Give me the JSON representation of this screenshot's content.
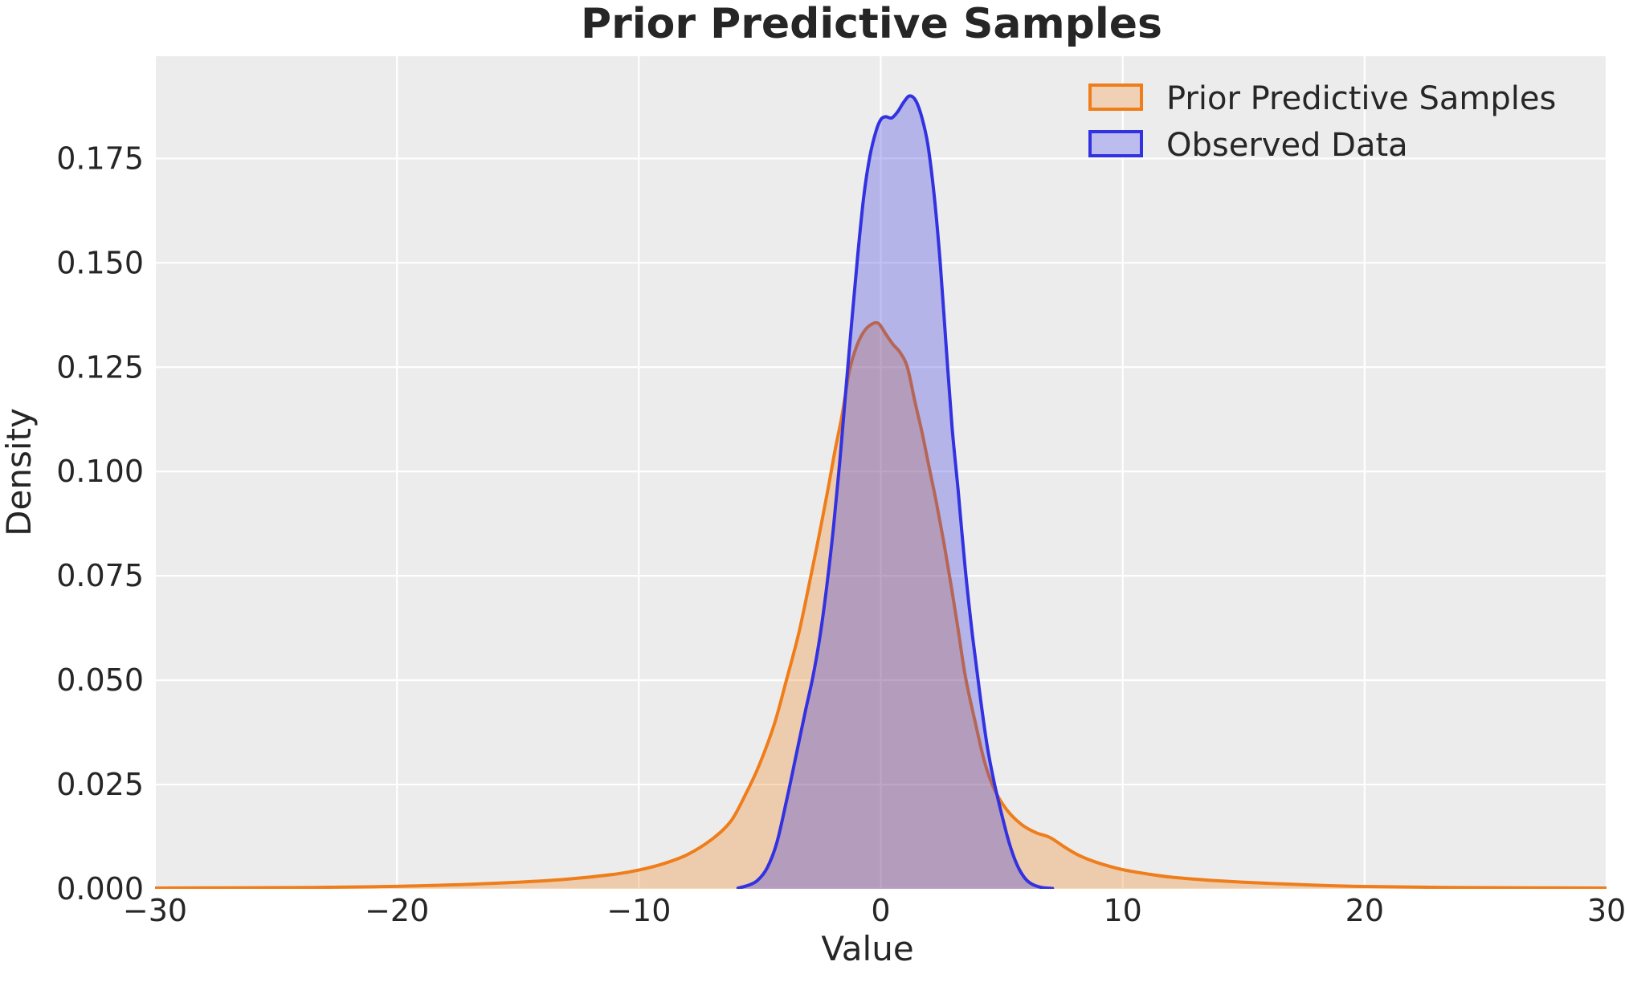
{
  "figure": {
    "title": "Prior Predictive Samples",
    "background": "#ffffff",
    "plot_background": "#ececec",
    "grid_color": "#ffffff",
    "text_color": "#262626"
  },
  "axes": {
    "xlabel": "Value",
    "ylabel": "Density",
    "xlim": [
      -30,
      30
    ],
    "ylim": [
      0,
      0.1995
    ],
    "x_ticks": [
      {
        "v": -30,
        "label": "−30"
      },
      {
        "v": -20,
        "label": "−20"
      },
      {
        "v": -10,
        "label": "−10"
      },
      {
        "v": 0,
        "label": "0"
      },
      {
        "v": 10,
        "label": "10"
      },
      {
        "v": 20,
        "label": "20"
      },
      {
        "v": 30,
        "label": "30"
      }
    ],
    "y_ticks": [
      {
        "v": 0.0,
        "label": "0.000"
      },
      {
        "v": 0.025,
        "label": "0.025"
      },
      {
        "v": 0.05,
        "label": "0.050"
      },
      {
        "v": 0.075,
        "label": "0.075"
      },
      {
        "v": 0.1,
        "label": "0.100"
      },
      {
        "v": 0.125,
        "label": "0.125"
      },
      {
        "v": 0.15,
        "label": "0.150"
      },
      {
        "v": 0.175,
        "label": "0.175"
      }
    ],
    "grid": true
  },
  "legend": {
    "position": "upper right",
    "items": [
      {
        "label": "Prior Predictive Samples",
        "line": "#ef7d1a",
        "fill": "#f1d1b5"
      },
      {
        "label": "Observed Data",
        "line": "#3232e1",
        "fill": "#bdbcee"
      }
    ]
  },
  "chart_data": {
    "type": "area",
    "title": "Prior Predictive Samples",
    "xlabel": "Value",
    "ylabel": "Density",
    "xlim": [
      -30,
      30
    ],
    "ylim": [
      0,
      0.1995
    ],
    "series": [
      {
        "name": "Prior Predictive Samples",
        "line_color": "#ef7d1a",
        "fill_opacity": 0.3,
        "points": [
          [
            -30,
            0.0002
          ],
          [
            -27,
            0.00025
          ],
          [
            -24,
            0.0003
          ],
          [
            -21,
            0.0005
          ],
          [
            -18,
            0.0009
          ],
          [
            -15,
            0.0016
          ],
          [
            -13,
            0.0023
          ],
          [
            -11,
            0.0035
          ],
          [
            -10,
            0.0045
          ],
          [
            -9,
            0.006
          ],
          [
            -8,
            0.0082
          ],
          [
            -7,
            0.0118
          ],
          [
            -6.2,
            0.0162
          ],
          [
            -5.6,
            0.0225
          ],
          [
            -5.0,
            0.03
          ],
          [
            -4.4,
            0.0395
          ],
          [
            -3.9,
            0.05
          ],
          [
            -3.4,
            0.061
          ],
          [
            -3.0,
            0.0718
          ],
          [
            -2.6,
            0.0832
          ],
          [
            -2.2,
            0.0952
          ],
          [
            -1.9,
            0.1048
          ],
          [
            -1.6,
            0.1135
          ],
          [
            -1.3,
            0.124
          ],
          [
            -1.0,
            0.13
          ],
          [
            -0.7,
            0.1335
          ],
          [
            -0.4,
            0.1352
          ],
          [
            -0.1,
            0.1355
          ],
          [
            0.2,
            0.133
          ],
          [
            0.5,
            0.1305
          ],
          [
            0.8,
            0.1285
          ],
          [
            1.1,
            0.125
          ],
          [
            1.4,
            0.117
          ],
          [
            1.7,
            0.1095
          ],
          [
            2.0,
            0.101
          ],
          [
            2.3,
            0.0925
          ],
          [
            2.6,
            0.0832
          ],
          [
            2.9,
            0.073
          ],
          [
            3.2,
            0.062
          ],
          [
            3.5,
            0.0508
          ],
          [
            3.9,
            0.04
          ],
          [
            4.3,
            0.0302
          ],
          [
            4.7,
            0.0238
          ],
          [
            5.2,
            0.019
          ],
          [
            5.8,
            0.0155
          ],
          [
            6.4,
            0.0135
          ],
          [
            7.0,
            0.0123
          ],
          [
            7.6,
            0.01
          ],
          [
            8.2,
            0.008
          ],
          [
            9.0,
            0.0062
          ],
          [
            10,
            0.0046
          ],
          [
            11,
            0.0036
          ],
          [
            12,
            0.0028
          ],
          [
            13.5,
            0.0021
          ],
          [
            15,
            0.0016
          ],
          [
            17,
            0.0011
          ],
          [
            19,
            0.0007
          ],
          [
            21,
            0.0005
          ],
          [
            24,
            0.0003
          ],
          [
            27,
            0.00025
          ],
          [
            30,
            0.0002
          ]
        ]
      },
      {
        "name": "Observed Data",
        "line_color": "#3232e1",
        "fill_opacity": 0.3,
        "points": [
          [
            -5.9,
            0.0002
          ],
          [
            -5.5,
            0.0008
          ],
          [
            -5.1,
            0.002
          ],
          [
            -4.7,
            0.005
          ],
          [
            -4.3,
            0.011
          ],
          [
            -3.9,
            0.021
          ],
          [
            -3.5,
            0.032
          ],
          [
            -3.1,
            0.043
          ],
          [
            -2.8,
            0.051
          ],
          [
            -2.5,
            0.061
          ],
          [
            -2.2,
            0.074
          ],
          [
            -1.95,
            0.087
          ],
          [
            -1.7,
            0.102
          ],
          [
            -1.45,
            0.119
          ],
          [
            -1.2,
            0.136
          ],
          [
            -0.95,
            0.152
          ],
          [
            -0.7,
            0.166
          ],
          [
            -0.45,
            0.1755
          ],
          [
            -0.2,
            0.1815
          ],
          [
            0.0,
            0.1843
          ],
          [
            0.2,
            0.185
          ],
          [
            0.45,
            0.1847
          ],
          [
            0.7,
            0.1862
          ],
          [
            0.95,
            0.1885
          ],
          [
            1.2,
            0.19
          ],
          [
            1.45,
            0.1888
          ],
          [
            1.7,
            0.1848
          ],
          [
            1.95,
            0.1782
          ],
          [
            2.2,
            0.1665
          ],
          [
            2.45,
            0.1505
          ],
          [
            2.7,
            0.1302
          ],
          [
            2.95,
            0.1105
          ],
          [
            3.2,
            0.0953
          ],
          [
            3.5,
            0.0762
          ],
          [
            3.8,
            0.0603
          ],
          [
            4.1,
            0.0465
          ],
          [
            4.4,
            0.0342
          ],
          [
            4.7,
            0.0252
          ],
          [
            5.0,
            0.0178
          ],
          [
            5.3,
            0.0112
          ],
          [
            5.6,
            0.0062
          ],
          [
            5.9,
            0.003
          ],
          [
            6.2,
            0.0013
          ],
          [
            6.6,
            0.0004
          ],
          [
            7.1,
            0.0001
          ]
        ]
      }
    ]
  }
}
